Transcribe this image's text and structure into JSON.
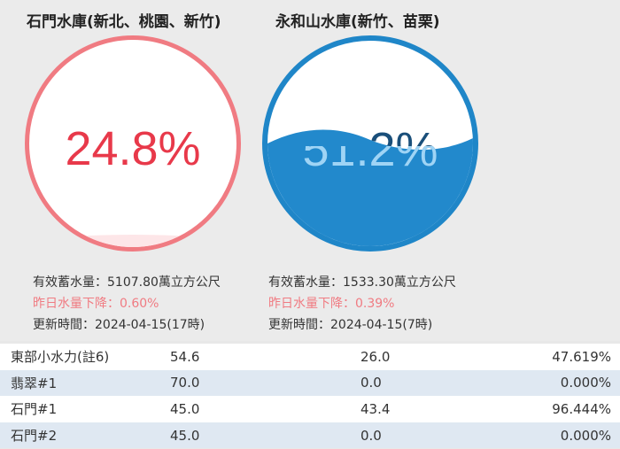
{
  "reservoirs": [
    {
      "name": "石門水庫(新北、桃園、新竹)",
      "percent": "24.8%",
      "fill_fraction": 0.248,
      "storage": "有效蓄水量：5107.80萬立方公尺",
      "change": "昨日水量下降：0.60%",
      "updated": "更新時間：2024-04-15(17時)",
      "ring_color": "#f07b82",
      "text_color": "#e8394a"
    },
    {
      "name": "永和山水庫(新竹、苗栗)",
      "percent": "51.2%",
      "fill_fraction": 0.512,
      "storage": "有效蓄水量：1533.30萬立方公尺",
      "change": "昨日水量下降：0.39%",
      "updated": "更新時間：2024-04-15(7時)",
      "ring_color": "#1f86c8",
      "text_color": "#1a4f7a"
    }
  ],
  "table": {
    "rows": [
      [
        "東部小水力(註6)",
        "54.6",
        "26.0",
        "47.619%"
      ],
      [
        "翡翠#1",
        "70.0",
        "0.0",
        "0.000%"
      ],
      [
        "石門#1",
        "45.0",
        "43.4",
        "96.444%"
      ],
      [
        "石門#2",
        "45.0",
        "0.0",
        "0.000%"
      ]
    ]
  }
}
